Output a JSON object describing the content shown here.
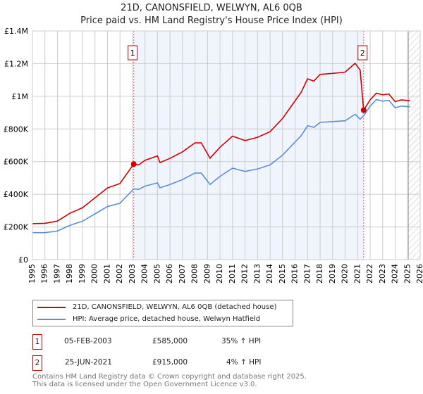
{
  "chart_data": {
    "type": "line",
    "title": "21D, CANONSFIELD, WELWYN, AL6 0QB",
    "subtitle": "Price paid vs. HM Land Registry's House Price Index (HPI)",
    "xlim": [
      1995,
      2026
    ],
    "ylim": [
      0,
      1400000
    ],
    "x_ticks": [
      "1995",
      "1996",
      "1997",
      "1998",
      "1999",
      "2000",
      "2001",
      "2002",
      "2003",
      "2004",
      "2005",
      "2006",
      "2007",
      "2008",
      "2009",
      "2010",
      "2011",
      "2012",
      "2013",
      "2014",
      "2015",
      "2016",
      "2017",
      "2018",
      "2019",
      "2020",
      "2021",
      "2022",
      "2023",
      "2024",
      "2025",
      "2026"
    ],
    "y_ticks": [
      {
        "v": 0,
        "label": "£0"
      },
      {
        "v": 200000,
        "label": "£200K"
      },
      {
        "v": 400000,
        "label": "£400K"
      },
      {
        "v": 600000,
        "label": "£600K"
      },
      {
        "v": 800000,
        "label": "£800K"
      },
      {
        "v": 1000000,
        "label": "£1M"
      },
      {
        "v": 1200000,
        "label": "£1.2M"
      },
      {
        "v": 1400000,
        "label": "£1.4M"
      }
    ],
    "series": [
      {
        "name": "21D, CANONSFIELD, WELWYN, AL6 0QB (detached house)",
        "color": "#cc0000",
        "points": [
          [
            1995,
            220000
          ],
          [
            1996,
            222000
          ],
          [
            1997,
            236000
          ],
          [
            1998,
            284000
          ],
          [
            1999,
            317000
          ],
          [
            2000,
            378000
          ],
          [
            2001,
            439000
          ],
          [
            2002,
            466000
          ],
          [
            2003.1,
            585000
          ],
          [
            2003.5,
            580000
          ],
          [
            2004,
            608000
          ],
          [
            2005,
            635000
          ],
          [
            2005.2,
            594000
          ],
          [
            2006,
            620000
          ],
          [
            2007,
            660000
          ],
          [
            2008,
            715000
          ],
          [
            2008.5,
            715000
          ],
          [
            2009.2,
            621000
          ],
          [
            2010,
            688000
          ],
          [
            2011,
            756000
          ],
          [
            2012,
            729000
          ],
          [
            2013,
            749000
          ],
          [
            2014,
            783000
          ],
          [
            2015,
            864000
          ],
          [
            2016,
            972000
          ],
          [
            2016.5,
            1026000
          ],
          [
            2017,
            1107000
          ],
          [
            2017.5,
            1093000
          ],
          [
            2018,
            1134000
          ],
          [
            2019,
            1140000
          ],
          [
            2020,
            1148000
          ],
          [
            2020.8,
            1202000
          ],
          [
            2021.2,
            1160000
          ],
          [
            2021.48,
            915000
          ],
          [
            2022,
            978000
          ],
          [
            2022.5,
            1019000
          ],
          [
            2023,
            1009000
          ],
          [
            2023.5,
            1014000
          ],
          [
            2024,
            967000
          ],
          [
            2024.5,
            978000
          ],
          [
            2025.2,
            972000
          ]
        ]
      },
      {
        "name": "HPI: Average price, detached house, Welwyn Hatfield",
        "color": "#5b8fd4",
        "points": [
          [
            1995,
            165000
          ],
          [
            1996,
            165000
          ],
          [
            1997,
            175000
          ],
          [
            1998,
            210000
          ],
          [
            1999,
            235000
          ],
          [
            2000,
            280000
          ],
          [
            2001,
            325000
          ],
          [
            2002,
            345000
          ],
          [
            2003.1,
            433000
          ],
          [
            2003.5,
            430000
          ],
          [
            2004,
            450000
          ],
          [
            2005,
            470000
          ],
          [
            2005.2,
            440000
          ],
          [
            2006,
            460000
          ],
          [
            2007,
            490000
          ],
          [
            2008,
            530000
          ],
          [
            2008.5,
            530000
          ],
          [
            2009.2,
            460000
          ],
          [
            2010,
            510000
          ],
          [
            2011,
            560000
          ],
          [
            2012,
            540000
          ],
          [
            2013,
            555000
          ],
          [
            2014,
            580000
          ],
          [
            2015,
            640000
          ],
          [
            2016,
            720000
          ],
          [
            2016.5,
            760000
          ],
          [
            2017,
            820000
          ],
          [
            2017.5,
            810000
          ],
          [
            2018,
            840000
          ],
          [
            2019,
            845000
          ],
          [
            2020,
            850000
          ],
          [
            2020.8,
            890000
          ],
          [
            2021.2,
            860000
          ],
          [
            2021.48,
            880000
          ],
          [
            2022,
            940000
          ],
          [
            2022.5,
            980000
          ],
          [
            2023,
            970000
          ],
          [
            2023.5,
            975000
          ],
          [
            2024,
            930000
          ],
          [
            2024.5,
            940000
          ],
          [
            2025.2,
            935000
          ]
        ]
      }
    ],
    "annotations": [
      {
        "label": "1",
        "x": 2003.1,
        "y": 585000
      },
      {
        "label": "2",
        "x": 2021.48,
        "y": 915000
      }
    ],
    "shaded_range": [
      2003.1,
      2021.48
    ],
    "hatched_from": 2025.05,
    "legend": "below"
  },
  "sales": [
    {
      "num": "1",
      "date": "05-FEB-2003",
      "price": "£585,000",
      "hpi": "35% ↑ HPI"
    },
    {
      "num": "2",
      "date": "25-JUN-2021",
      "price": "£915,000",
      "hpi": "4% ↑ HPI"
    }
  ],
  "footer": {
    "line1": "Contains HM Land Registry data © Crown copyright and database right 2025.",
    "line2": "This data is licensed under the Open Government Licence v3.0."
  }
}
